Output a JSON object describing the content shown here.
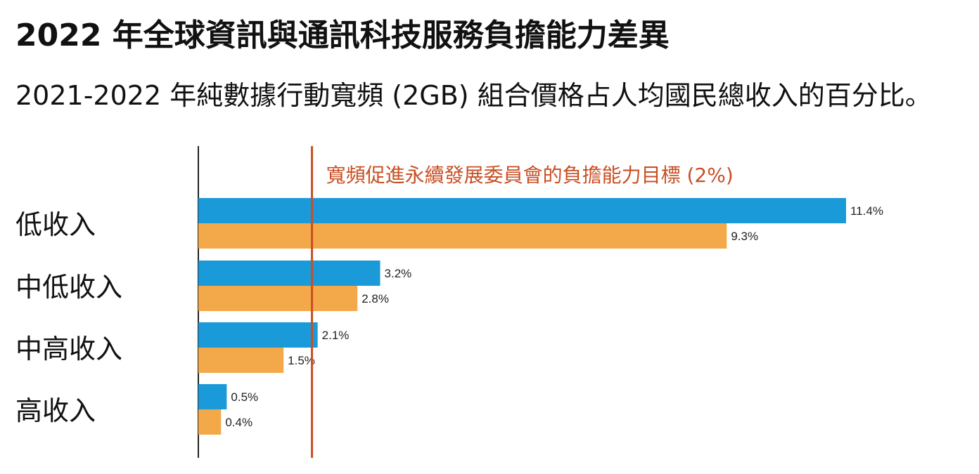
{
  "title": "2022 年全球資訊與通訊科技服務負擔能力差異",
  "subtitle": "2021-2022 年純數據行動寬頻 (2GB) 組合價格占人均國民總收入的百分比。",
  "chart_data": {
    "type": "bar",
    "orientation": "horizontal",
    "title": "2022 年全球資訊與通訊科技服務負擔能力差異",
    "subtitle": "2021-2022 年純數據行動寬頻 (2GB) 組合價格占人均國民總收入的百分比。",
    "categories": [
      "低收入",
      "中低收入",
      "中高收入",
      "高收入"
    ],
    "series": [
      {
        "values": [
          11.4,
          3.2,
          2.1,
          0.5
        ],
        "labels": [
          "11.4%",
          "3.2%",
          "2.1%",
          "0.5%"
        ],
        "color": "#1a9ad8"
      },
      {
        "values": [
          9.3,
          2.8,
          1.5,
          0.4
        ],
        "labels": [
          "9.3%",
          "2.8%",
          "1.5%",
          "0.4%"
        ],
        "color": "#f3a94a"
      }
    ],
    "reference_line": {
      "value": 2,
      "label": "寬頻促進永續發展委員會的負擔能力目標 (2%)",
      "color": "#c84f24"
    },
    "xlim": [
      0,
      11.4
    ],
    "grid": false,
    "legend": "none"
  }
}
